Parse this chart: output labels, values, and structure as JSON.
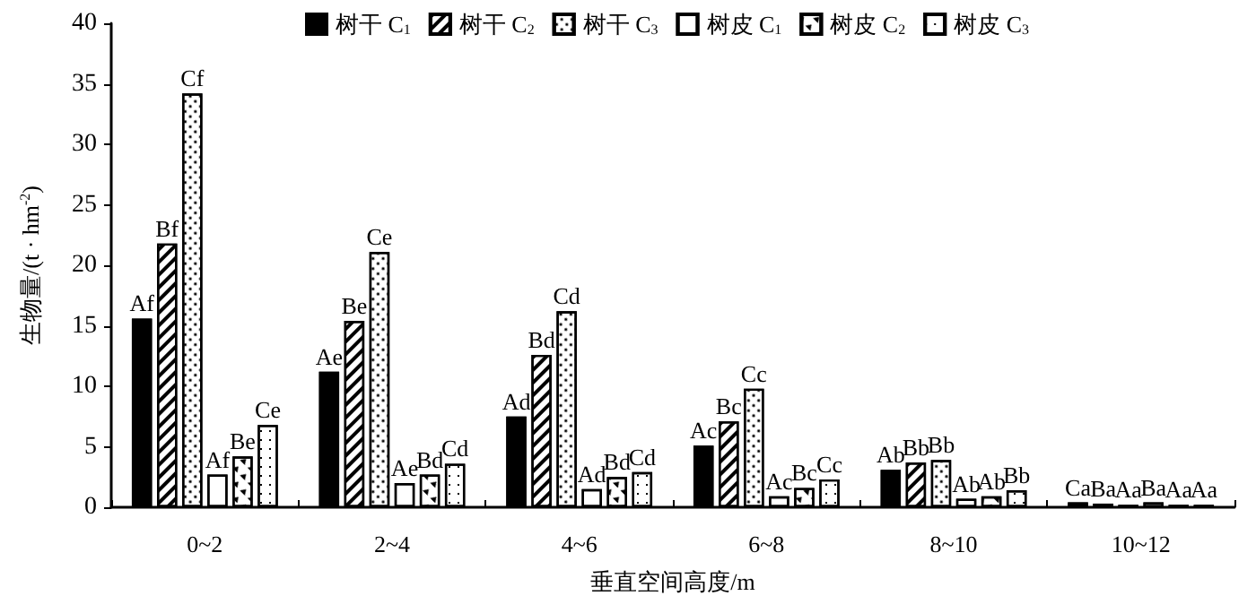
{
  "chart_data": {
    "type": "bar",
    "xlabel": "垂直空间高度/m",
    "ylabel": "生物量/(t · hm$^{-2}$)",
    "categories": [
      "0~2",
      "2~4",
      "4~6",
      "6~8",
      "8~10",
      "10~12"
    ],
    "ylim": [
      0,
      40
    ],
    "yticks": [
      0,
      5,
      10,
      15,
      20,
      25,
      30,
      35,
      40
    ],
    "grid": false,
    "legend": "top",
    "series": [
      {
        "name": "树干 C$_{1}$",
        "color": "#000000",
        "values": [
          15.6,
          11.2,
          7.5,
          5.1,
          3.1,
          0.4
        ],
        "value_labels": [
          "Af",
          "Ae",
          "Ad",
          "Ac",
          "Ab",
          "Ca"
        ]
      },
      {
        "name": "树干 C$_{2}$",
        "color": "#ffffff",
        "values": [
          21.8,
          15.4,
          12.6,
          7.1,
          3.7,
          0.3
        ],
        "value_labels": [
          "Bf",
          "Be",
          "Bd",
          "Bc",
          "Bb",
          "Ba"
        ]
      },
      {
        "name": "树干 C$_{3}$",
        "color": "#ffffff",
        "values": [
          34.2,
          21.1,
          16.2,
          9.8,
          3.9,
          0.2
        ],
        "value_labels": [
          "Cf",
          "Ce",
          "Cd",
          "Cc",
          "Bb",
          "Aa"
        ]
      },
      {
        "name": "树皮 C$_{1}$",
        "color": "#ffffff",
        "values": [
          2.7,
          2.0,
          1.5,
          0.9,
          0.7,
          0.4
        ],
        "value_labels": [
          "Af",
          "Ae",
          "Ad",
          "Ac",
          "Ab",
          "Ba"
        ]
      },
      {
        "name": "树皮 C$_{2}$",
        "color": "#ffffff",
        "values": [
          4.2,
          2.7,
          2.5,
          1.6,
          0.9,
          0.2
        ],
        "value_labels": [
          "Be",
          "Bd",
          "Bd",
          "Bc",
          "Ab",
          "Aa"
        ]
      },
      {
        "name": "树皮 C$_{3}$",
        "color": "#ffffff",
        "values": [
          6.8,
          3.6,
          2.9,
          2.3,
          1.4,
          0.2
        ],
        "value_labels": [
          "Ce",
          "Cd",
          "Cd",
          "Cc",
          "Bb",
          "Aa"
        ]
      }
    ]
  }
}
